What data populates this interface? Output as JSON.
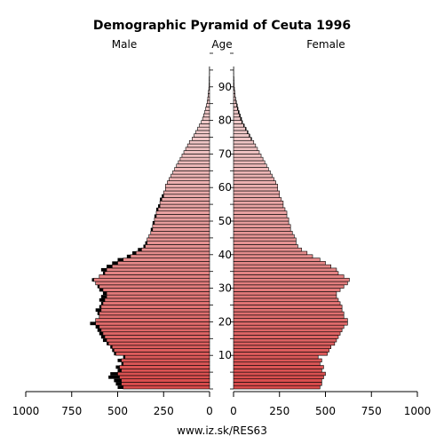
{
  "chart_data": {
    "type": "bar",
    "orientation": "horizontal-mirrored",
    "title": "Demographic Pyramid of Ceuta 1996",
    "left_label": "Male",
    "center_label": "Age",
    "right_label": "Female",
    "source": "www.iz.sk/RES63",
    "age_ticks": [
      "10",
      "20",
      "30",
      "40",
      "50",
      "60",
      "70",
      "80",
      "90"
    ],
    "x_ticks_left": [
      "1000",
      "750",
      "500",
      "250",
      "0"
    ],
    "x_ticks_right": [
      "0",
      "250",
      "500",
      "750",
      "1000"
    ],
    "xlim": [
      0,
      1000
    ],
    "age_range": [
      0,
      100
    ],
    "colors": {
      "young_bar": "#d94a4a",
      "old_bar": "#f0c8c8",
      "excess": "#000000",
      "outline": "#000000"
    },
    "series": [
      {
        "name": "Male",
        "values": [
          500,
          510,
          520,
          550,
          540,
          500,
          510,
          480,
          500,
          470,
          520,
          530,
          540,
          560,
          580,
          590,
          600,
          610,
          620,
          650,
          620,
          600,
          610,
          620,
          600,
          590,
          600,
          590,
          580,
          600,
          610,
          620,
          640,
          600,
          580,
          590,
          560,
          530,
          500,
          450,
          420,
          390,
          360,
          350,
          340,
          330,
          320,
          320,
          310,
          310,
          300,
          300,
          290,
          290,
          280,
          270,
          270,
          260,
          250,
          240,
          240,
          230,
          220,
          210,
          200,
          190,
          180,
          170,
          160,
          150,
          140,
          130,
          120,
          110,
          95,
          85,
          75,
          65,
          55,
          45,
          38,
          32,
          26,
          21,
          17,
          13,
          10,
          8,
          6,
          4,
          3,
          2,
          2,
          1,
          1,
          1,
          0,
          0,
          0,
          0,
          0
        ]
      },
      {
        "name": "Female",
        "values": [
          470,
          480,
          480,
          490,
          500,
          480,
          490,
          470,
          480,
          460,
          510,
          520,
          530,
          550,
          560,
          570,
          580,
          590,
          600,
          620,
          620,
          600,
          600,
          590,
          590,
          580,
          570,
          560,
          560,
          580,
          600,
          620,
          630,
          600,
          570,
          560,
          530,
          500,
          470,
          430,
          400,
          370,
          350,
          340,
          340,
          330,
          320,
          310,
          310,
          300,
          300,
          290,
          290,
          280,
          270,
          270,
          260,
          250,
          250,
          240,
          240,
          230,
          220,
          210,
          200,
          190,
          180,
          170,
          160,
          150,
          140,
          130,
          120,
          110,
          100,
          90,
          80,
          70,
          60,
          50,
          45,
          38,
          32,
          26,
          22,
          17,
          13,
          10,
          8,
          6,
          4,
          3,
          2,
          2,
          1,
          1,
          0,
          0,
          0,
          0,
          0
        ]
      }
    ]
  }
}
